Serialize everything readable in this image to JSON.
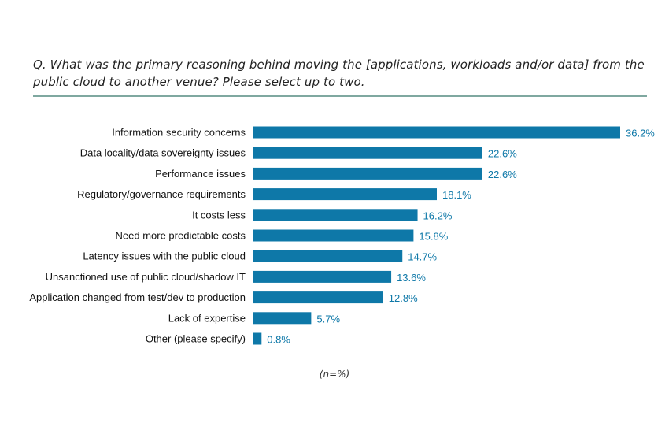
{
  "question": "Q. What was the primary reasoning behind moving the [applications, workloads and/or data] from the public cloud to another venue? Please select up to two.",
  "note": "(n=%)",
  "colors": {
    "bar": "#0e78a8",
    "value_label": "#0e78a8",
    "rule": "#7fa8a0",
    "category_label": "#111111"
  },
  "chart_data": {
    "type": "bar",
    "orientation": "horizontal",
    "categories": [
      "Information security concerns",
      "Data locality/data sovereignty issues",
      "Performance issues",
      "Regulatory/governance requirements",
      "It costs less",
      "Need more predictable costs",
      "Latency issues with the public cloud",
      "Unsanctioned use of public cloud/shadow IT",
      "Application changed from test/dev to production",
      "Lack of expertise",
      "Other (please specify)"
    ],
    "values": [
      36.2,
      22.6,
      22.6,
      18.1,
      16.2,
      15.8,
      14.7,
      13.6,
      12.8,
      5.7,
      0.8
    ],
    "value_labels": [
      "36.2%",
      "22.6%",
      "22.6%",
      "18.1%",
      "16.2%",
      "15.8%",
      "14.7%",
      "13.6%",
      "12.8%",
      "5.7%",
      "0.8%"
    ],
    "xlim": [
      0,
      36.2
    ],
    "grid": false,
    "legend": "none"
  }
}
